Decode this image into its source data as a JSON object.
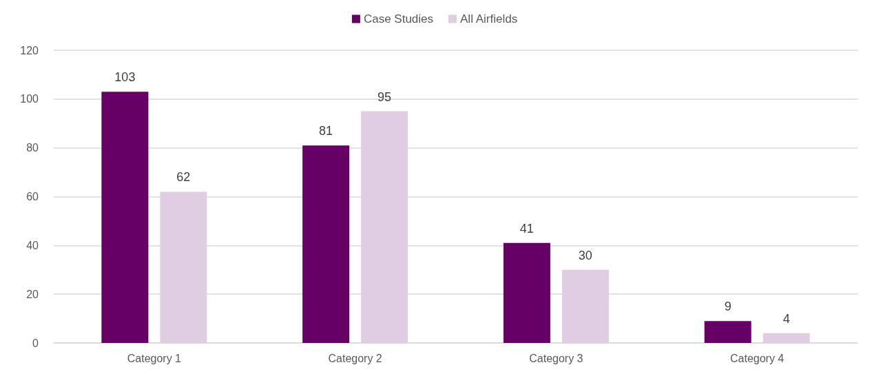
{
  "chart_data": {
    "type": "bar",
    "categories": [
      "Category 1",
      "Category 2",
      "Category 3",
      "Category 4"
    ],
    "series": [
      {
        "name": "Case Studies",
        "color": "#660066",
        "values": [
          103,
          81,
          41,
          9
        ]
      },
      {
        "name": "All Airfields",
        "color": "#e0cde4",
        "values": [
          62,
          95,
          30,
          4
        ]
      }
    ],
    "ylim": [
      0,
      120
    ],
    "yticks": [
      0,
      20,
      40,
      60,
      80,
      100,
      120
    ],
    "grid": "y",
    "legend": "top",
    "data_labels": true
  }
}
